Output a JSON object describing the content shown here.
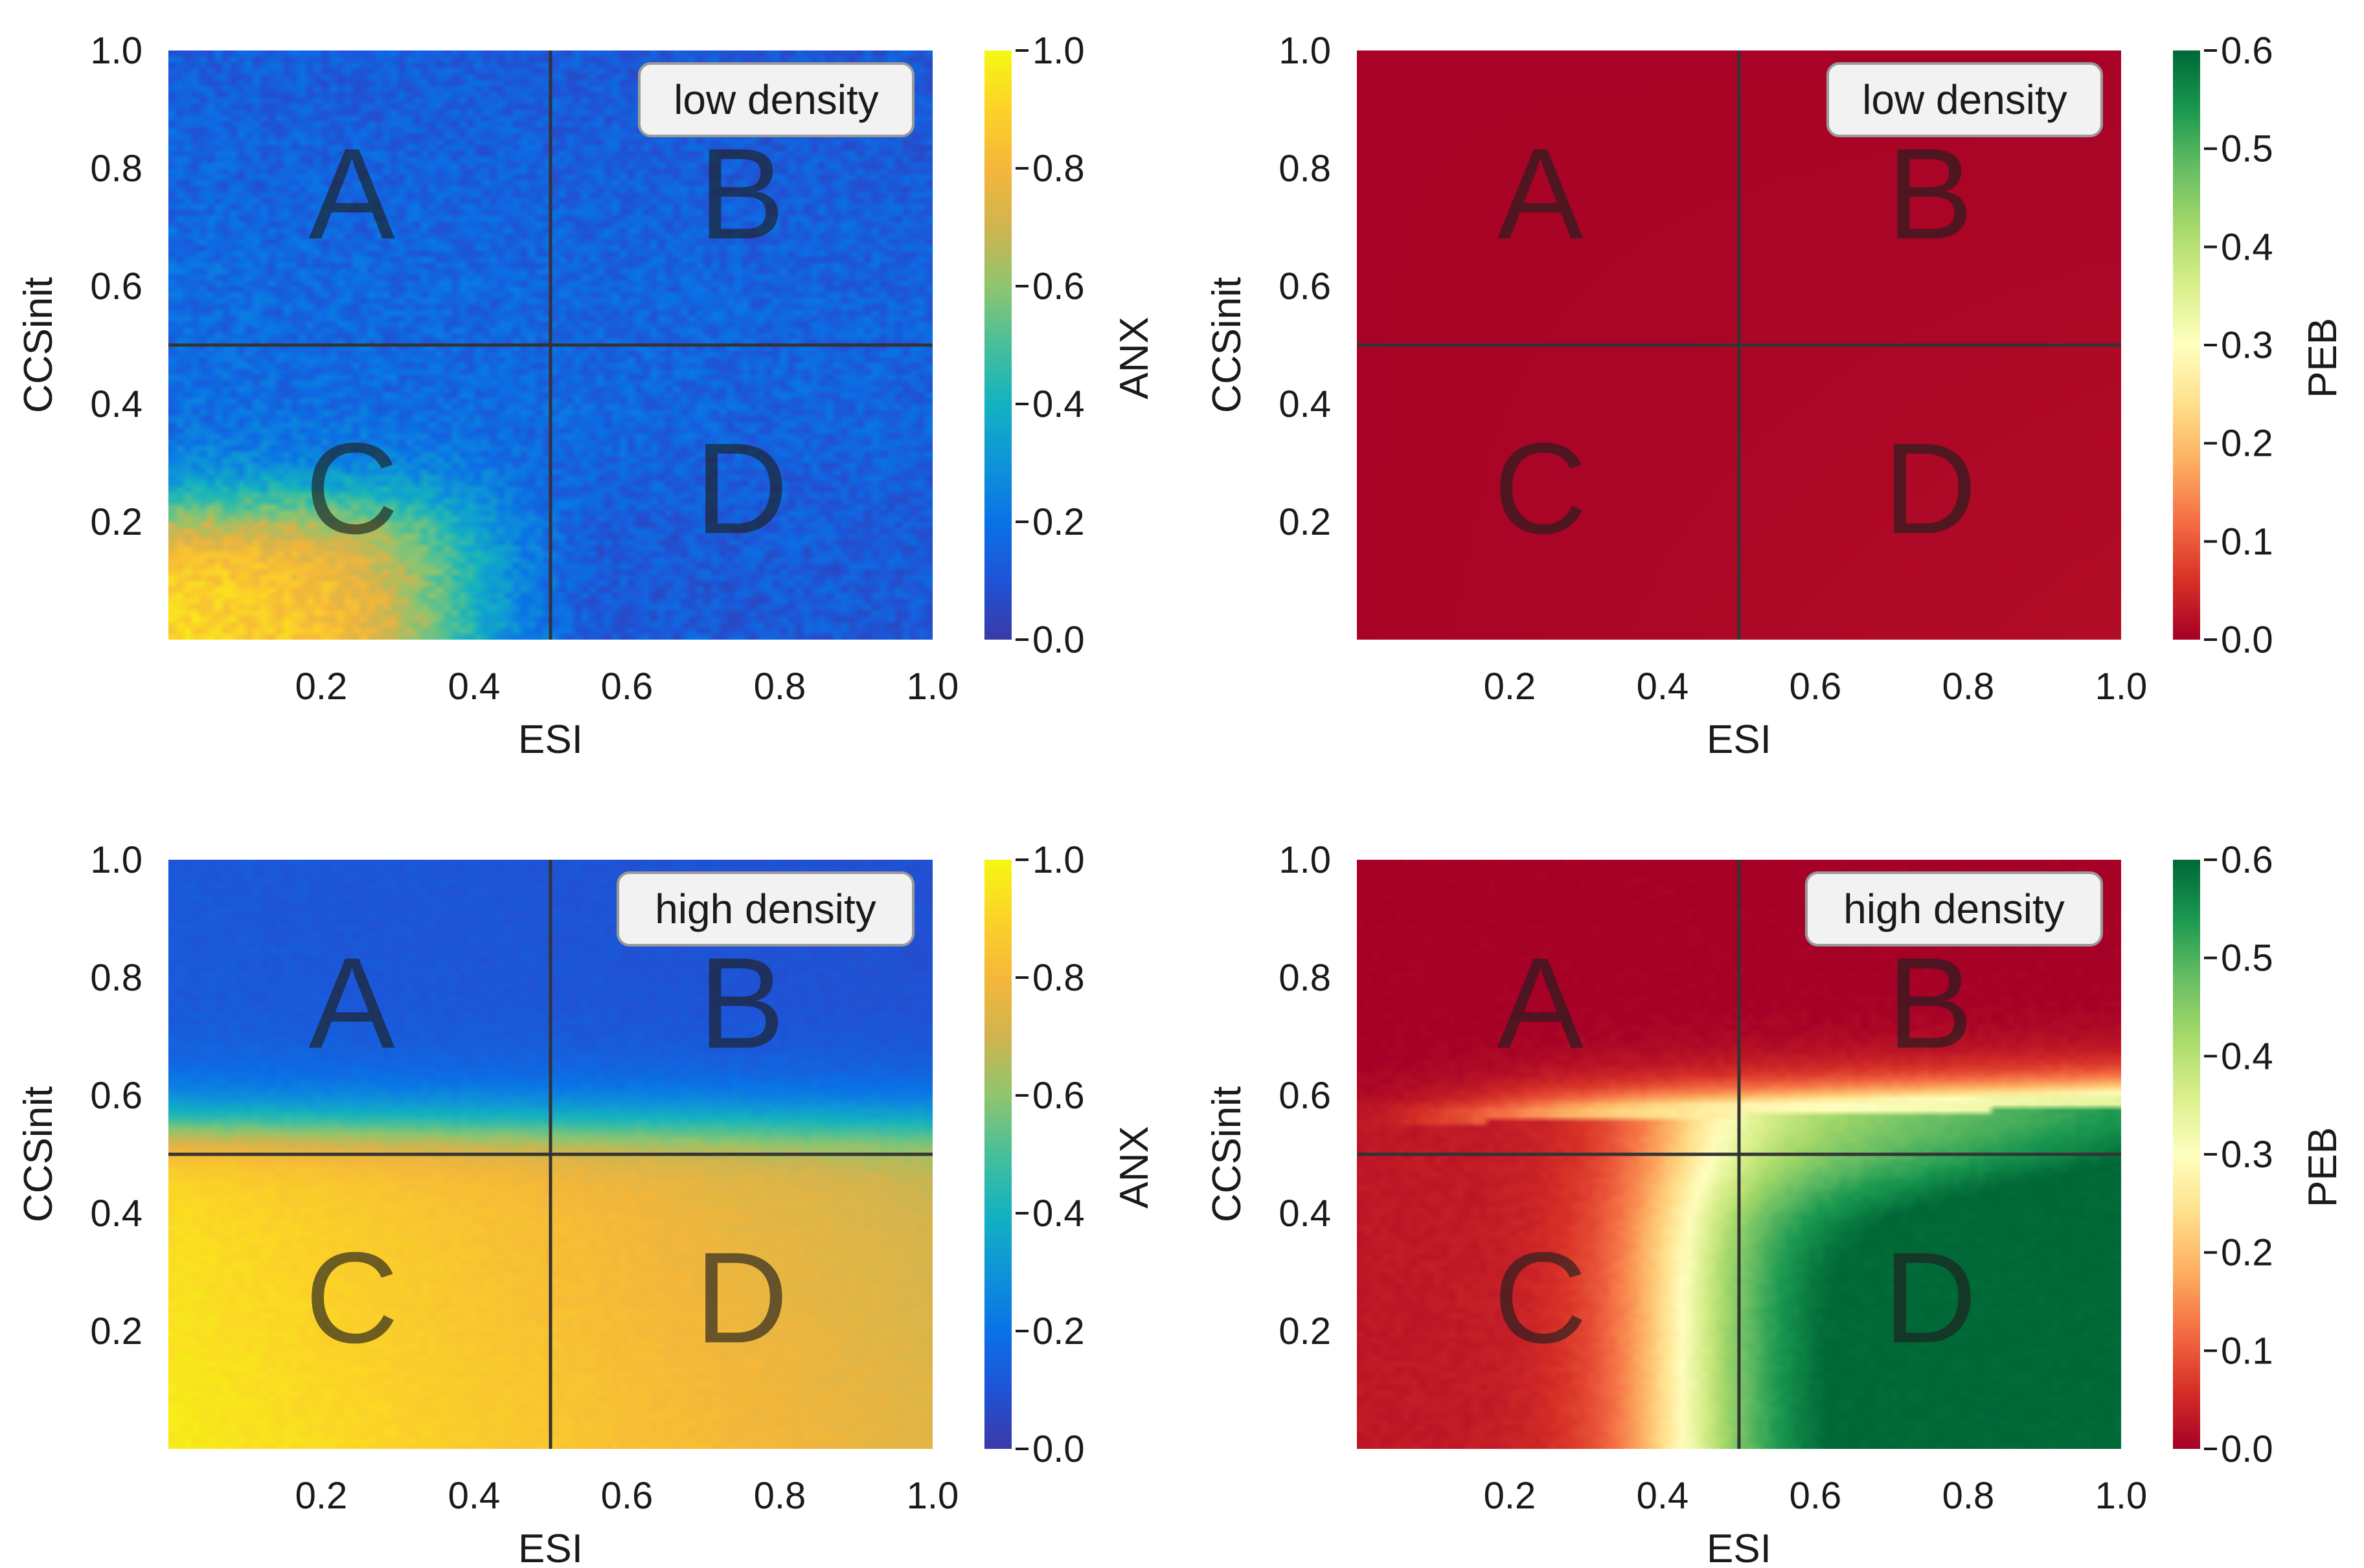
{
  "chart_data": [
    {
      "type": "heatmap",
      "panel": "top-left",
      "legend": "low density",
      "xlabel": "ESI",
      "ylabel": "CCSinit",
      "xlim": [
        0,
        1
      ],
      "ylim": [
        0,
        1
      ],
      "x_ticks": [
        "0.2",
        "0.4",
        "0.6",
        "0.8",
        "1.0"
      ],
      "y_ticks": [
        "0.2",
        "0.4",
        "0.6",
        "0.8",
        "1.0"
      ],
      "colorbar": {
        "label": "ANX",
        "range": [
          0,
          1
        ],
        "ticks": [
          "0.0",
          "0.2",
          "0.4",
          "0.6",
          "0.8",
          "1.0"
        ],
        "colormap": "plasma-like blue-yellow"
      },
      "divider_lines": {
        "x": 0.5,
        "y": 0.5
      },
      "regions": [
        "A",
        "B",
        "C",
        "D"
      ],
      "field": "anx_low",
      "noise": 0.6
    },
    {
      "type": "heatmap",
      "panel": "top-right",
      "legend": "low density",
      "xlabel": "ESI",
      "ylabel": "CCSinit",
      "xlim": [
        0,
        1
      ],
      "ylim": [
        0,
        1
      ],
      "x_ticks": [
        "0.2",
        "0.4",
        "0.6",
        "0.8",
        "1.0"
      ],
      "y_ticks": [
        "0.2",
        "0.4",
        "0.6",
        "0.8",
        "1.0"
      ],
      "colorbar": {
        "label": "PEB",
        "range": [
          0,
          0.6
        ],
        "ticks": [
          "0.0",
          "0.1",
          "0.2",
          "0.3",
          "0.4",
          "0.5",
          "0.6"
        ],
        "colormap": "RdYlGn"
      },
      "divider_lines": {
        "x": 0.5,
        "y": 0.5
      },
      "regions": [
        "A",
        "B",
        "C",
        "D"
      ],
      "field": "peb_low",
      "noise": 0
    },
    {
      "type": "heatmap",
      "panel": "bottom-left",
      "legend": "high density",
      "xlabel": "ESI",
      "ylabel": "CCSinit",
      "xlim": [
        0,
        1
      ],
      "ylim": [
        0,
        1
      ],
      "x_ticks": [
        "0.2",
        "0.4",
        "0.6",
        "0.8",
        "1.0"
      ],
      "y_ticks": [
        "0.2",
        "0.4",
        "0.6",
        "0.8",
        "1.0"
      ],
      "colorbar": {
        "label": "ANX",
        "range": [
          0,
          1
        ],
        "ticks": [
          "0.0",
          "0.2",
          "0.4",
          "0.6",
          "0.8",
          "1.0"
        ],
        "colormap": "plasma-like blue-yellow"
      },
      "divider_lines": {
        "x": 0.5,
        "y": 0.5
      },
      "regions": [
        "A",
        "B",
        "C",
        "D"
      ],
      "field": "anx_high",
      "noise": 0.15
    },
    {
      "type": "heatmap",
      "panel": "bottom-right",
      "legend": "high density",
      "xlabel": "ESI",
      "ylabel": "CCSinit",
      "xlim": [
        0,
        1
      ],
      "ylim": [
        0,
        1
      ],
      "x_ticks": [
        "0.2",
        "0.4",
        "0.6",
        "0.8",
        "1.0"
      ],
      "y_ticks": [
        "0.2",
        "0.4",
        "0.6",
        "0.8",
        "1.0"
      ],
      "colorbar": {
        "label": "PEB",
        "range": [
          0,
          0.6
        ],
        "ticks": [
          "0.0",
          "0.1",
          "0.2",
          "0.3",
          "0.4",
          "0.5",
          "0.6"
        ],
        "colormap": "RdYlGn"
      },
      "divider_lines": {
        "x": 0.5,
        "y": 0.5
      },
      "regions": [
        "A",
        "B",
        "C",
        "D"
      ],
      "field": "peb_high",
      "noise": 0.1
    }
  ],
  "colors": {
    "anx_scale": [
      "#3a3aa8",
      "#1f53d6",
      "#0a72e6",
      "#0f94d8",
      "#13b2c0",
      "#47bf9a",
      "#8fc56f",
      "#d0b44f",
      "#f5b73a",
      "#fcd228",
      "#f6f812"
    ],
    "peb_scale": [
      "#a50026",
      "#d73027",
      "#f46d43",
      "#fdae61",
      "#fee08b",
      "#ffffbf",
      "#d9ef8b",
      "#a6d96a",
      "#66bd63",
      "#1a9850",
      "#006837"
    ],
    "divider": "#333333",
    "region_label": "#1e1e1e",
    "legend_bg": "#f2f2f2",
    "legend_border": "#999999"
  }
}
